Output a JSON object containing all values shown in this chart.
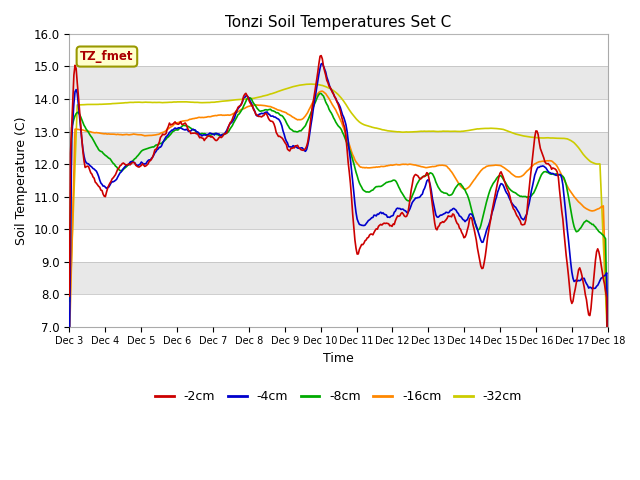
{
  "title": "Tonzi Soil Temperatures Set C",
  "xlabel": "Time",
  "ylabel": "Soil Temperature (C)",
  "ylim": [
    7.0,
    16.0
  ],
  "yticks": [
    7.0,
    8.0,
    9.0,
    10.0,
    11.0,
    12.0,
    13.0,
    14.0,
    15.0,
    16.0
  ],
  "xtick_labels": [
    "Dec 3",
    "Dec 4",
    "Dec 5",
    "Dec 6",
    "Dec 7",
    "Dec 8",
    "Dec 9",
    "Dec 10",
    "Dec 11",
    "Dec 12",
    "Dec 13",
    "Dec 14",
    "Dec 15",
    "Dec 16",
    "Dec 17",
    "Dec 18"
  ],
  "colors": {
    "-2cm": "#cc0000",
    "-4cm": "#0000cc",
    "-8cm": "#00aa00",
    "-16cm": "#ff8800",
    "-32cm": "#cccc00"
  },
  "legend_label": "TZ_fmet",
  "legend_bg": "#ffffcc",
  "legend_border": "#999900",
  "band_white": "#ffffff",
  "band_gray": "#e8e8e8",
  "n_points": 480
}
